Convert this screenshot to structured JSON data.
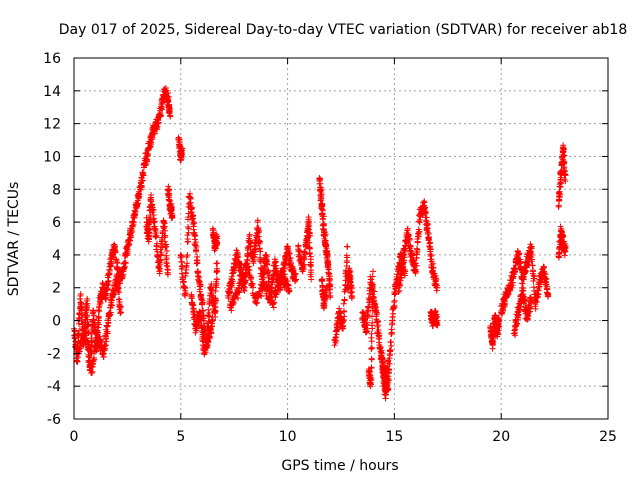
{
  "chart_data": {
    "type": "scatter",
    "title": "Day 017 of 2025, Sidereal Day-to-day VTEC variation (SDTVAR) for receiver ab18",
    "xlabel": "GPS time / hours",
    "ylabel": "SDTVAR / TECUs",
    "xlim": [
      0,
      25
    ],
    "ylim": [
      -6,
      16
    ],
    "xticks": [
      0,
      5,
      10,
      15,
      20,
      25
    ],
    "yticks": [
      -6,
      -4,
      -2,
      0,
      2,
      4,
      6,
      8,
      10,
      12,
      14,
      16
    ],
    "grid": true,
    "marker": "+",
    "color": "#ff0000",
    "series": [
      {
        "name": "SDTVAR",
        "segments": [
          {
            "x": [
              0.0,
              0.15,
              0.3,
              0.45,
              0.6,
              0.75,
              0.9,
              1.05,
              1.2,
              1.35,
              1.5,
              1.7,
              1.9,
              2.1,
              2.3,
              2.5,
              2.7,
              2.9,
              3.1,
              3.3,
              3.5,
              3.7,
              3.9,
              4.1,
              4.25,
              4.4,
              4.5
            ],
            "y": [
              -0.5,
              -2.5,
              1.5,
              -1.5,
              1.2,
              -3.0,
              0.5,
              -1.8,
              1.0,
              2.0,
              1.5,
              3.5,
              4.5,
              2.5,
              3.0,
              4.5,
              5.5,
              7.0,
              8.0,
              9.5,
              10.5,
              11.5,
              12.0,
              13.0,
              14.0,
              13.5,
              12.5
            ]
          },
          {
            "x": [
              3.4,
              3.5,
              3.6,
              3.8,
              4.0,
              4.2,
              4.4
            ],
            "y": [
              6.0,
              5.0,
              7.5,
              5.5,
              3.0,
              6.0,
              2.8
            ]
          },
          {
            "x": [
              0.2,
              0.5,
              0.8,
              1.1,
              1.4,
              1.6,
              1.8,
              2.0,
              2.2
            ],
            "y": [
              -2.0,
              -0.5,
              -3.2,
              -1.0,
              -2.0,
              0.0,
              1.5,
              2.5,
              0.5
            ]
          },
          {
            "x": [
              4.9,
              5.0,
              5.05
            ],
            "y": [
              11.0,
              10.0,
              10.5
            ]
          },
          {
            "x": [
              4.4,
              4.5,
              4.6
            ],
            "y": [
              8.0,
              7.0,
              6.5
            ]
          },
          {
            "x": [
              5.0,
              5.2,
              5.4,
              5.6,
              5.8,
              6.0,
              6.2,
              6.4,
              6.6,
              6.7
            ],
            "y": [
              4.0,
              1.5,
              7.5,
              6.0,
              3.0,
              1.0,
              -1.5,
              2.0,
              0.5,
              3.5
            ]
          },
          {
            "x": [
              5.5,
              5.7,
              5.9,
              6.1,
              6.3,
              6.5
            ],
            "y": [
              1.5,
              -0.5,
              0.5,
              -2.0,
              -1.0,
              0.0
            ]
          },
          {
            "x": [
              6.5,
              6.6,
              6.7
            ],
            "y": [
              5.5,
              4.5,
              5.0
            ]
          },
          {
            "x": [
              7.2,
              7.4,
              7.6,
              7.8,
              8.0,
              8.2,
              8.4,
              8.6,
              8.8,
              9.0,
              9.2,
              9.4,
              9.6,
              9.8,
              10.0,
              10.2,
              10.4
            ],
            "y": [
              1.5,
              2.5,
              4.0,
              3.0,
              2.0,
              5.0,
              3.5,
              6.0,
              2.5,
              4.0,
              1.5,
              3.5,
              2.0,
              3.0,
              4.5,
              3.0,
              2.5
            ]
          },
          {
            "x": [
              7.3,
              7.7,
              8.1,
              8.5,
              8.9,
              9.3,
              9.7,
              10.1
            ],
            "y": [
              0.8,
              1.8,
              3.5,
              1.2,
              2.2,
              1.0,
              2.8,
              1.8
            ]
          },
          {
            "x": [
              10.5,
              10.7,
              10.9,
              11.0,
              11.1
            ],
            "y": [
              4.5,
              3.0,
              5.0,
              6.0,
              2.5
            ]
          },
          {
            "x": [
              11.5,
              11.6,
              11.7,
              11.8,
              11.9,
              12.0
            ],
            "y": [
              8.5,
              7.0,
              5.5,
              4.5,
              3.5,
              1.5
            ]
          },
          {
            "x": [
              11.6,
              11.7,
              11.8
            ],
            "y": [
              2.5,
              1.0,
              1.8
            ]
          },
          {
            "x": [
              12.2,
              12.4,
              12.6,
              12.8
            ],
            "y": [
              -1.5,
              0.5,
              -0.5,
              4.5
            ]
          },
          {
            "x": [
              12.8,
              12.9,
              13.0
            ],
            "y": [
              2.0,
              3.0,
              1.5
            ]
          },
          {
            "x": [
              13.5,
              13.7,
              13.9,
              14.1,
              14.3,
              14.5,
              14.7,
              14.9,
              15.1,
              15.3,
              15.5
            ],
            "y": [
              0.5,
              -0.5,
              2.5,
              1.0,
              -1.5,
              -3.0,
              -4.2,
              0.0,
              2.5,
              4.0,
              3.0
            ]
          },
          {
            "x": [
              13.8,
              13.9,
              14.0
            ],
            "y": [
              -3.2,
              -3.8,
              3.0
            ]
          },
          {
            "x": [
              14.4,
              14.5,
              14.6,
              14.7
            ],
            "y": [
              -2.0,
              -3.5,
              -4.5,
              -2.5
            ]
          },
          {
            "x": [
              15.2,
              15.4,
              15.6,
              15.8,
              16.0,
              16.2,
              16.4,
              16.6,
              16.8,
              17.0
            ],
            "y": [
              2.0,
              3.5,
              5.5,
              4.0,
              3.0,
              6.5,
              7.0,
              5.0,
              3.0,
              2.0
            ]
          },
          {
            "x": [
              16.7,
              16.8,
              16.9,
              17.0
            ],
            "y": [
              0.5,
              0.0,
              0.3,
              -0.2
            ]
          },
          {
            "x": [
              19.5,
              19.6,
              19.7,
              19.8,
              19.9
            ],
            "y": [
              -0.5,
              -1.5,
              0.3,
              -0.8,
              0.0
            ]
          },
          {
            "x": [
              20.0,
              20.2,
              20.4,
              20.6,
              20.8,
              21.0,
              21.2,
              21.4,
              21.6,
              21.8,
              22.0,
              22.2
            ],
            "y": [
              0.5,
              1.5,
              2.0,
              3.0,
              4.0,
              2.5,
              3.5,
              4.5,
              1.0,
              2.5,
              3.0,
              1.5
            ]
          },
          {
            "x": [
              20.6,
              20.8,
              21.0,
              21.2,
              21.4
            ],
            "y": [
              -0.8,
              0.5,
              1.8,
              0.2,
              1.2
            ]
          },
          {
            "x": [
              22.7,
              22.8,
              22.9,
              23.0
            ],
            "y": [
              7.0,
              9.0,
              10.5,
              8.5
            ]
          },
          {
            "x": [
              22.7,
              22.8,
              22.9,
              23.0
            ],
            "y": [
              4.0,
              5.5,
              4.8,
              4.2
            ]
          }
        ]
      }
    ]
  }
}
